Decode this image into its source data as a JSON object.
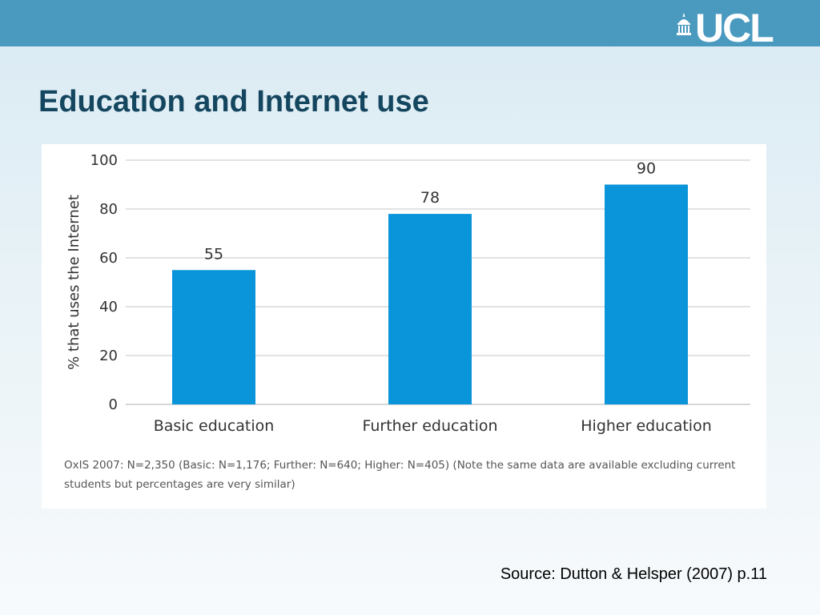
{
  "brand": {
    "logo_text": "UCL"
  },
  "slide": {
    "title": "Education and Internet use"
  },
  "chart_data": {
    "type": "bar",
    "categories": [
      "Basic education",
      "Further education",
      "Higher education"
    ],
    "values": [
      55,
      78,
      90
    ],
    "data_labels": [
      "55",
      "78",
      "90"
    ],
    "ylabel": "% that uses the Internet",
    "xlabel": "",
    "ylim": [
      0,
      100
    ],
    "yticks": [
      0,
      20,
      40,
      60,
      80,
      100
    ],
    "grid": true,
    "bar_color": "#0a94d9",
    "note": "OxIS 2007: N=2,350 (Basic: N=1,176; Further: N=640; Higher: N=405) (Note the same data are available excluding current students but percentages are very similar)"
  },
  "footer": {
    "source": "Source: Dutton & Helsper (2007) p.11"
  },
  "colors": {
    "header": "#4a9ac0",
    "title": "#14465f",
    "bar": "#0a94d9"
  }
}
